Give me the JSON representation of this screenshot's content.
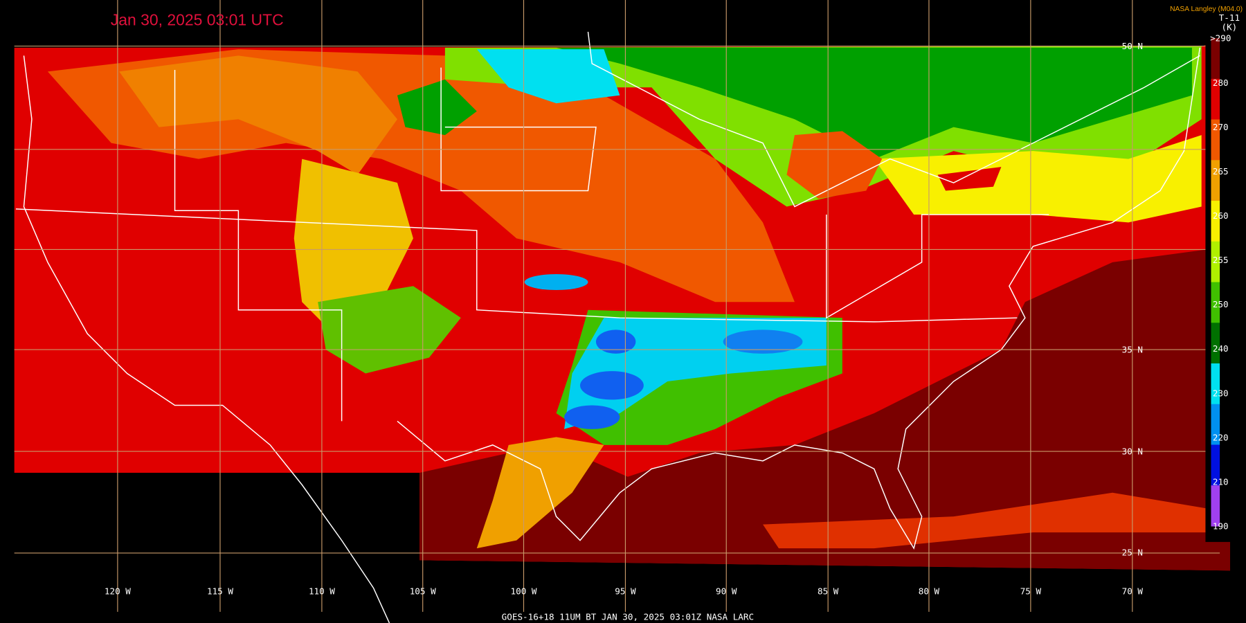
{
  "header": {
    "title": "Jan 30, 2025 03:01 UTC",
    "source": "NASA Langley (M04.0)"
  },
  "legend": {
    "title": "T-11",
    "unit": "(K)",
    "labels": [
      ">290",
      "280",
      "270",
      "265",
      "260",
      "255",
      "250",
      "240",
      "230",
      "220",
      "210",
      "190"
    ]
  },
  "latitude_labels": [
    "50 N",
    "35 N",
    "30 N",
    "25 N"
  ],
  "longitude_labels": [
    "120 W",
    "115 W",
    "110 W",
    "105 W",
    "100 W",
    "95 W",
    "90 W",
    "85 W",
    "80 W",
    "75 W",
    "70 W"
  ],
  "footer": "GOES-16+18  11UM BT  JAN 30, 2025 03:01Z  NASA LARC"
}
